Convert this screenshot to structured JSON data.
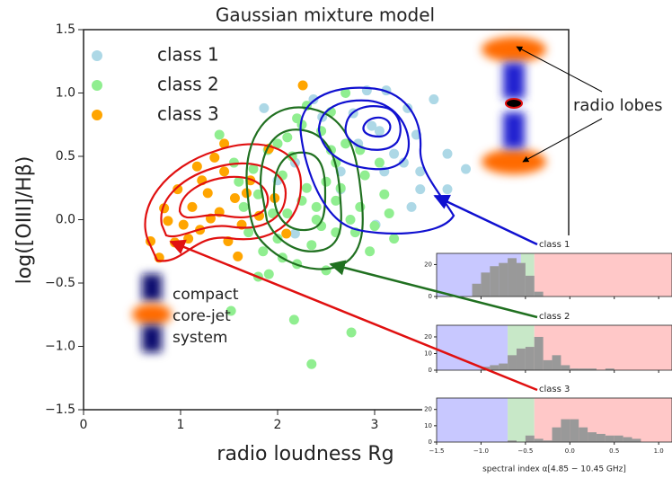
{
  "chart_data": [
    {
      "type": "scatter",
      "title": "Gaussian mixture model",
      "x_label": "radio loudness Rg",
      "y_label": "log([OIII]/Hβ)",
      "xlim": [
        0,
        5
      ],
      "ylim": [
        -1.5,
        1.5
      ],
      "xticks": [
        0,
        1,
        2,
        3
      ],
      "yticks": [
        {
          "value": -1.5,
          "label": "−1.5"
        },
        {
          "value": -1.0,
          "label": "−1.0"
        },
        {
          "value": -0.5,
          "label": "−0.5"
        },
        {
          "value": 0.0,
          "label": "0.0"
        },
        0.5,
        {
          "value": 1.0,
          "label": "1.0"
        },
        1.5
      ],
      "legend": "upper left",
      "annotations": [
        "radio lobes",
        "compact",
        "core-jet",
        "system"
      ],
      "series": [
        {
          "name": "class 1",
          "color": "#add8e6",
          "x": [
            3.12,
            3.61,
            3.43,
            2.97,
            2.83,
            3.2,
            2.65,
            2.46,
            3.47,
            3.75,
            3.94,
            3.38,
            2.18,
            2.37,
            2.0,
            3.01,
            2.18,
            3.1,
            1.86,
            3.34,
            2.78,
            2.92,
            3.75,
            3.47,
            2.65,
            3.05,
            2.55,
            3.3
          ],
          "y": [
            1.02,
            0.95,
            0.67,
            0.74,
            0.6,
            0.52,
            0.38,
            0.81,
            0.38,
            0.24,
            0.4,
            0.1,
            0.45,
            0.95,
            0.31,
            -0.04,
            -0.11,
            0.38,
            0.88,
            0.88,
            0.84,
            1.02,
            0.52,
            0.24,
            0.24,
            0.7,
            0.55,
            0.45
          ]
        },
        {
          "name": "class 2",
          "color": "#90ee90",
          "x": [
            2.17,
            2.35,
            2.76,
            1.52,
            1.91,
            1.4,
            1.8,
            1.95,
            2.05,
            2.15,
            2.25,
            2.4,
            2.5,
            2.6,
            2.7,
            2.85,
            3.0,
            3.1,
            1.7,
            1.85,
            2.0,
            2.1,
            2.2,
            2.3,
            2.45,
            2.55,
            2.65,
            2.8,
            2.9,
            3.05,
            1.65,
            1.75,
            1.9,
            2.05,
            2.2,
            2.35,
            2.5,
            2.6,
            2.75,
            2.95,
            3.15,
            2.3,
            2.4,
            2.55,
            2.7,
            2.1,
            1.6,
            2.25,
            2.45,
            2.85,
            3.2,
            1.55,
            2.0,
            2.6,
            1.8
          ],
          "y": [
            -0.79,
            -1.14,
            -0.89,
            -0.72,
            -0.43,
            0.67,
            0.2,
            0.05,
            0.35,
            0.5,
            0.15,
            0.0,
            0.3,
            0.45,
            0.6,
            0.1,
            -0.05,
            0.2,
            -0.1,
            -0.25,
            -0.15,
            0.65,
            0.8,
            0.9,
            0.7,
            0.55,
            0.25,
            -0.1,
            0.35,
            0.45,
            0.1,
            0.4,
            0.55,
            -0.3,
            -0.35,
            -0.2,
            -0.4,
            -0.1,
            0.0,
            -0.25,
            0.05,
            0.25,
            0.1,
            0.85,
            1.0,
            0.05,
            0.3,
            0.75,
            -0.05,
            0.55,
            -0.15,
            0.45,
            0.6,
            0.15,
            -0.45
          ]
        },
        {
          "name": "class 3",
          "color": "#ffa500",
          "x": [
            2.26,
            0.69,
            0.83,
            0.97,
            1.03,
            1.12,
            1.22,
            1.28,
            1.35,
            1.4,
            1.45,
            1.56,
            1.63,
            1.72,
            1.81,
            1.91,
            2.09,
            1.2,
            1.49,
            0.78,
            1.59,
            1.08,
            0.87,
            1.31,
            1.68,
            1.97,
            1.45,
            1.17,
            0.94
          ],
          "y": [
            1.06,
            -0.17,
            0.09,
            0.24,
            -0.04,
            0.1,
            0.31,
            0.21,
            0.49,
            0.06,
            0.38,
            0.17,
            -0.04,
            0.31,
            0.03,
            0.56,
            -0.11,
            -0.08,
            -0.17,
            -0.3,
            -0.29,
            -0.15,
            -0.01,
            0.01,
            0.21,
            0.17,
            0.6,
            0.42,
            -0.18
          ]
        }
      ]
    },
    {
      "type": "histogram",
      "title": "class 1",
      "color": "#999999",
      "bins": [
        -1.1,
        -1.0,
        -0.9,
        -0.8,
        -0.7,
        -0.6,
        -0.5,
        -0.4,
        -0.3
      ],
      "counts": [
        8,
        15,
        19,
        21,
        24,
        21,
        13,
        3
      ],
      "regions": [
        {
          "from": -1.5,
          "to": -0.55,
          "color": "#c8c8ff"
        },
        {
          "from": -0.55,
          "to": -0.4,
          "color": "#c8e8c8"
        },
        {
          "from": -0.4,
          "to": 1.15,
          "color": "#ffc8c8"
        }
      ],
      "xlim": [
        -1.5,
        1.15
      ],
      "ylim": [
        0,
        27
      ],
      "xticks": [
        -1.5,
        -1,
        -0.5,
        0,
        0.5,
        1
      ],
      "yticks": [
        0,
        20
      ]
    },
    {
      "type": "histogram",
      "title": "class 2",
      "color": "#999999",
      "bins": [
        -1.0,
        -0.9,
        -0.8,
        -0.7,
        -0.6,
        -0.5,
        -0.4,
        -0.3,
        -0.2,
        -0.1,
        0.0,
        0.1,
        0.2,
        0.3,
        0.4,
        0.5
      ],
      "counts": [
        2,
        3,
        4,
        9,
        13,
        14,
        20,
        6,
        9,
        3,
        1,
        1,
        1,
        0,
        1
      ],
      "regions": [
        {
          "from": -1.5,
          "to": -0.7,
          "color": "#c8c8ff"
        },
        {
          "from": -0.7,
          "to": -0.4,
          "color": "#c8e8c8"
        },
        {
          "from": -0.4,
          "to": 1.15,
          "color": "#ffc8c8"
        }
      ],
      "xlim": [
        -1.5,
        1.15
      ],
      "ylim": [
        0,
        27
      ],
      "xticks": [
        -1.5,
        -1,
        -0.5,
        0,
        0.5,
        1
      ],
      "yticks": [
        0,
        10,
        20
      ]
    },
    {
      "type": "histogram",
      "title": "class 3",
      "color": "#999999",
      "bins": [
        -0.7,
        -0.6,
        -0.5,
        -0.4,
        -0.3,
        -0.2,
        -0.1,
        0.0,
        0.1,
        0.2,
        0.3,
        0.4,
        0.5,
        0.6,
        0.7,
        0.8
      ],
      "counts": [
        1,
        0,
        4,
        2,
        1,
        9,
        14,
        14,
        9,
        6,
        5,
        4,
        4,
        3,
        2
      ],
      "regions": [
        {
          "from": -1.5,
          "to": -0.7,
          "color": "#c8c8ff"
        },
        {
          "from": -0.7,
          "to": -0.4,
          "color": "#c8e8c8"
        },
        {
          "from": -0.4,
          "to": 1.15,
          "color": "#ffc8c8"
        }
      ],
      "xlim": [
        -1.5,
        1.15
      ],
      "ylim": [
        0,
        27
      ],
      "xticks": [
        {
          "value": -1.5,
          "label": "−1.5"
        },
        {
          "value": -1.0,
          "label": "−1.0"
        },
        {
          "value": -0.5,
          "label": "−0.5"
        },
        {
          "value": 0.0,
          "label": "0.0"
        },
        0.5,
        {
          "value": 1.0,
          "label": "1.0"
        }
      ],
      "yticks": [
        0,
        10,
        20
      ],
      "x_label": "spectral index α[4.85 − 10.45 GHz]"
    }
  ]
}
